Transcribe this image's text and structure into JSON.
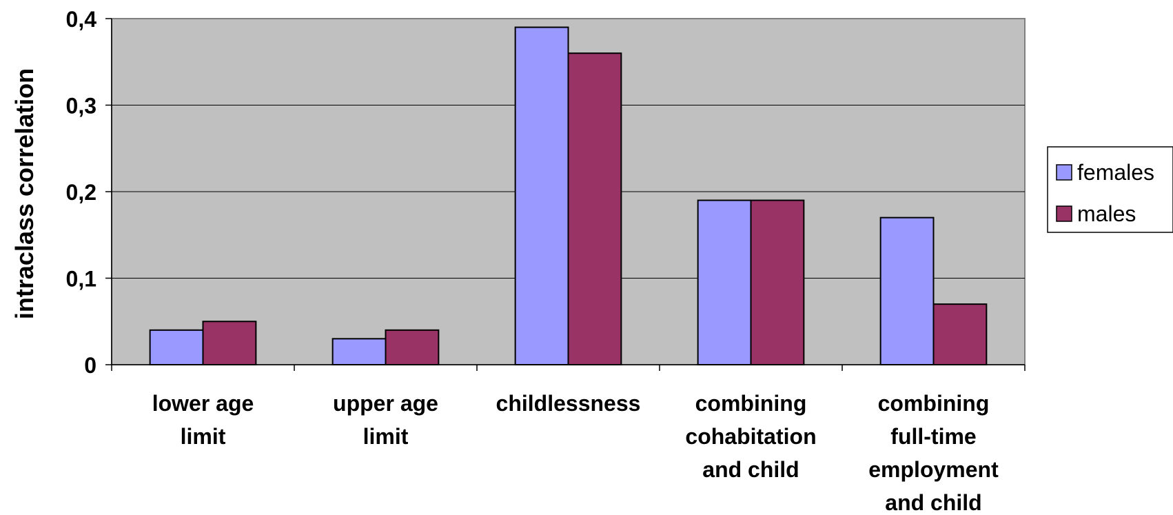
{
  "chart_data": {
    "type": "bar",
    "ylabel": "intraclass correlation",
    "xlabel": "",
    "ylim": [
      0,
      0.4
    ],
    "yticks": [
      "0",
      "0,1",
      "0,2",
      "0,3",
      "0,4"
    ],
    "categories": [
      [
        "lower age",
        "limit"
      ],
      [
        "upper age",
        "limit"
      ],
      [
        "childlessness"
      ],
      [
        "combining",
        "cohabitation",
        "and child"
      ],
      [
        "combining",
        "full-time",
        "employment",
        "and child"
      ]
    ],
    "series": [
      {
        "name": "females",
        "color": "#9999ff",
        "values": [
          0.04,
          0.03,
          0.39,
          0.19,
          0.17
        ]
      },
      {
        "name": "males",
        "color": "#993366",
        "values": [
          0.05,
          0.04,
          0.36,
          0.19,
          0.07
        ]
      }
    ],
    "grid": true,
    "plot_background": "#c0c0c0",
    "legend_position": "right"
  }
}
